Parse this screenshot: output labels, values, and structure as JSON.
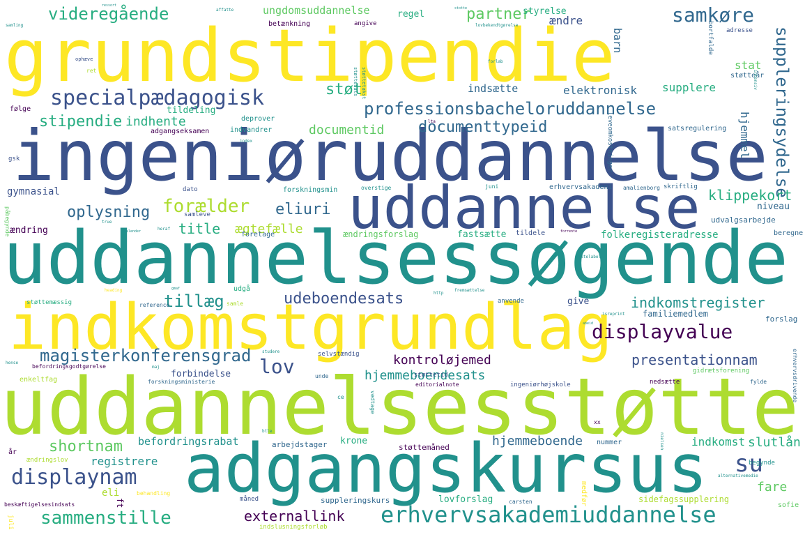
{
  "palette": {
    "purple": "#440154",
    "indigo": "#3b528b",
    "blue": "#31688e",
    "teal": "#21918c",
    "seagreen": "#27ad81",
    "green": "#5ec962",
    "lime": "#addc30",
    "yellow": "#fde725",
    "background": "#ffffff"
  },
  "words": [
    {
      "text": "grundstipendie",
      "weight": 100,
      "color": "#fde725",
      "orientation": "horizontal"
    },
    {
      "text": "ingeniøruddannelse",
      "weight": 92,
      "color": "#3b528b",
      "orientation": "horizontal"
    },
    {
      "text": "uddannelsessøgende",
      "weight": 90,
      "color": "#21918c",
      "orientation": "horizontal"
    },
    {
      "text": "uddannelsesstøtte",
      "weight": 95,
      "color": "#addc30",
      "orientation": "horizontal"
    },
    {
      "text": "indkomstgrundlag",
      "weight": 70,
      "color": "#fde725",
      "orientation": "horizontal"
    },
    {
      "text": "uddannelse",
      "weight": 70,
      "color": "#3b528b",
      "orientation": "horizontal"
    },
    {
      "text": "adgangskursus",
      "weight": 72,
      "color": "#21918c",
      "orientation": "horizontal"
    },
    {
      "text": "specialpædagogisk",
      "weight": 30,
      "color": "#3b528b",
      "orientation": "horizontal"
    },
    {
      "text": "professionsbacheloruddannelse",
      "weight": 28,
      "color": "#31688e",
      "orientation": "horizontal"
    },
    {
      "text": "erhvervsakademiuddannelse",
      "weight": 30,
      "color": "#21918c",
      "orientation": "horizontal"
    },
    {
      "text": "sammenstille",
      "weight": 26,
      "color": "#27ad81",
      "orientation": "horizontal"
    },
    {
      "text": "displaynam",
      "weight": 27,
      "color": "#3b528b",
      "orientation": "horizontal"
    },
    {
      "text": "displayvalue",
      "weight": 24,
      "color": "#440154",
      "orientation": "horizontal"
    },
    {
      "text": "magisterkonferensgrad",
      "weight": 22,
      "color": "#31688e",
      "orientation": "horizontal"
    },
    {
      "text": "videregående",
      "weight": 22,
      "color": "#27ad81",
      "orientation": "horizontal"
    },
    {
      "text": "samkøre",
      "weight": 22,
      "color": "#31688e",
      "orientation": "horizontal"
    },
    {
      "text": "suppleringsydelse",
      "weight": 22,
      "color": "#31688e",
      "orientation": "vertical"
    },
    {
      "text": "partner",
      "weight": 20,
      "color": "#5ec962",
      "orientation": "horizontal"
    },
    {
      "text": "støt",
      "weight": 22,
      "color": "#27ad81",
      "orientation": "horizontal"
    },
    {
      "text": "stipendie",
      "weight": 20,
      "color": "#27ad81",
      "orientation": "horizontal"
    },
    {
      "text": "forælder",
      "weight": 22,
      "color": "#addc30",
      "orientation": "horizontal"
    },
    {
      "text": "oplysning",
      "weight": 20,
      "color": "#31688e",
      "orientation": "horizontal"
    },
    {
      "text": "eliuri",
      "weight": 20,
      "color": "#31688e",
      "orientation": "horizontal"
    },
    {
      "text": "documenttypeid",
      "weight": 20,
      "color": "#31688e",
      "orientation": "horizontal"
    },
    {
      "text": "documentid",
      "weight": 18,
      "color": "#5ec962",
      "orientation": "horizontal"
    },
    {
      "text": "ungdomsuddannelse",
      "weight": 15,
      "color": "#5ec962",
      "orientation": "horizontal"
    },
    {
      "text": "tillæg",
      "weight": 20,
      "color": "#21918c",
      "orientation": "horizontal"
    },
    {
      "text": "udeboendesats",
      "weight": 20,
      "color": "#3b528b",
      "orientation": "horizontal"
    },
    {
      "text": "indkomstregister",
      "weight": 20,
      "color": "#21918c",
      "orientation": "horizontal"
    },
    {
      "text": "lov",
      "weight": 25,
      "color": "#3b528b",
      "orientation": "horizontal"
    },
    {
      "text": "kontroløjemed",
      "weight": 18,
      "color": "#440154",
      "orientation": "horizontal"
    },
    {
      "text": "hjemmeboendesats",
      "weight": 18,
      "color": "#21918c",
      "orientation": "horizontal"
    },
    {
      "text": "presentationnam",
      "weight": 18,
      "color": "#3b528b",
      "orientation": "horizontal"
    },
    {
      "text": "shortnam",
      "weight": 20,
      "color": "#5ec962",
      "orientation": "horizontal"
    },
    {
      "text": "su",
      "weight": 30,
      "color": "#3b528b",
      "orientation": "horizontal"
    },
    {
      "text": "externallink",
      "weight": 18,
      "color": "#440154",
      "orientation": "horizontal"
    },
    {
      "text": "fare",
      "weight": 16,
      "color": "#5ec962",
      "orientation": "horizontal"
    },
    {
      "text": "klippekort",
      "weight": 16,
      "color": "#27ad81",
      "orientation": "horizontal"
    },
    {
      "text": "title",
      "weight": 18,
      "color": "#27ad81",
      "orientation": "horizontal"
    },
    {
      "text": "ægtefælle",
      "weight": 16,
      "color": "#addc30",
      "orientation": "horizontal"
    },
    {
      "text": "hjemmeboende",
      "weight": 16,
      "color": "#31688e",
      "orientation": "horizontal"
    },
    {
      "text": "slutlån",
      "weight": 16,
      "color": "#27ad81",
      "orientation": "horizontal"
    },
    {
      "text": "indkomst",
      "weight": 14,
      "color": "#27ad81",
      "orientation": "horizontal"
    },
    {
      "text": "registrere",
      "weight": 14,
      "color": "#21918c",
      "orientation": "horizontal"
    },
    {
      "text": "befordringsrabat",
      "weight": 14,
      "color": "#21918c",
      "orientation": "horizontal"
    },
    {
      "text": "indhente",
      "weight": 16,
      "color": "#27ad81",
      "orientation": "horizontal"
    },
    {
      "text": "elektronisk",
      "weight": 14,
      "color": "#31688e",
      "orientation": "horizontal"
    },
    {
      "text": "supplere",
      "weight": 14,
      "color": "#27ad81",
      "orientation": "horizontal"
    },
    {
      "text": "indsætte",
      "weight": 14,
      "color": "#31688e",
      "orientation": "horizontal"
    },
    {
      "text": "hjemmel",
      "weight": 14,
      "color": "#31688e",
      "orientation": "vertical"
    },
    {
      "text": "barn",
      "weight": 14,
      "color": "#31688e",
      "orientation": "vertical"
    },
    {
      "text": "stat",
      "weight": 14,
      "color": "#5ec962",
      "orientation": "horizontal"
    },
    {
      "text": "styrelse",
      "weight": 12,
      "color": "#27ad81",
      "orientation": "horizontal"
    },
    {
      "text": "ændre",
      "weight": 14,
      "color": "#3b528b",
      "orientation": "horizontal"
    },
    {
      "text": "regel",
      "weight": 12,
      "color": "#27ad81",
      "orientation": "horizontal"
    },
    {
      "text": "tildeling",
      "weight": 12,
      "color": "#27ad81",
      "orientation": "horizontal"
    },
    {
      "text": "gymnasial",
      "weight": 13,
      "color": "#3b528b",
      "orientation": "horizontal"
    },
    {
      "text": "ændring",
      "weight": 12,
      "color": "#440154",
      "orientation": "horizontal"
    },
    {
      "text": "ændringsforslag",
      "weight": 11,
      "color": "#5ec962",
      "orientation": "horizontal"
    },
    {
      "text": "fastsætte",
      "weight": 13,
      "color": "#27ad81",
      "orientation": "horizontal"
    },
    {
      "text": "forbindelse",
      "weight": 13,
      "color": "#3b528b",
      "orientation": "horizontal"
    },
    {
      "text": "folkeregisteradresse",
      "weight": 13,
      "color": "#27ad81",
      "orientation": "horizontal"
    },
    {
      "text": "familiemedlem",
      "weight": 12,
      "color": "#31688e",
      "orientation": "horizontal"
    },
    {
      "text": "give",
      "weight": 12,
      "color": "#3b528b",
      "orientation": "horizontal"
    },
    {
      "text": "forslag",
      "weight": 11,
      "color": "#31688e",
      "orientation": "horizontal"
    },
    {
      "text": "lovforslag",
      "weight": 12,
      "color": "#27ad81",
      "orientation": "horizontal"
    },
    {
      "text": "suppleringskurs",
      "weight": 11,
      "color": "#31688e",
      "orientation": "horizontal"
    },
    {
      "text": "sidefagssupplering",
      "weight": 11,
      "color": "#addc30",
      "orientation": "horizontal"
    },
    {
      "text": "støttemåned",
      "weight": 11,
      "color": "#440154",
      "orientation": "horizontal"
    },
    {
      "text": "krone",
      "weight": 12,
      "color": "#27ad81",
      "orientation": "horizontal"
    },
    {
      "text": "arbejdstager",
      "weight": 11,
      "color": "#31688e",
      "orientation": "horizontal"
    },
    {
      "text": "nummer",
      "weight": 10,
      "color": "#31688e",
      "orientation": "horizontal"
    },
    {
      "text": "beregne",
      "weight": 10,
      "color": "#31688e",
      "orientation": "horizontal"
    },
    {
      "text": "udvalgsarbejde",
      "weight": 11,
      "color": "#31688e",
      "orientation": "horizontal"
    },
    {
      "text": "niveau",
      "weight": 12,
      "color": "#31688e",
      "orientation": "horizontal"
    },
    {
      "text": "erhvervsakademi",
      "weight": 10,
      "color": "#31688e",
      "orientation": "horizontal"
    },
    {
      "text": "forskningsmin",
      "weight": 10,
      "color": "#21918c",
      "orientation": "horizontal"
    },
    {
      "text": "satsregulering",
      "weight": 10,
      "color": "#31688e",
      "orientation": "horizontal"
    },
    {
      "text": "adgangseksamen",
      "weight": 10,
      "color": "#440154",
      "orientation": "horizontal"
    },
    {
      "text": "indvandrer",
      "weight": 10,
      "color": "#21918c",
      "orientation": "horizontal"
    },
    {
      "text": "deprover",
      "weight": 10,
      "color": "#21918c",
      "orientation": "horizontal"
    },
    {
      "text": "følge",
      "weight": 10,
      "color": "#440154",
      "orientation": "horizontal"
    },
    {
      "text": "betænkning",
      "weight": 10,
      "color": "#440154",
      "orientation": "horizontal"
    },
    {
      "text": "angive",
      "weight": 9,
      "color": "#440154",
      "orientation": "horizontal"
    },
    {
      "text": "adresse",
      "weight": 9,
      "color": "#3b528b",
      "orientation": "horizontal"
    },
    {
      "text": "støtteår",
      "weight": 10,
      "color": "#31688e",
      "orientation": "horizontal"
    },
    {
      "text": "skriftlig",
      "weight": 9,
      "color": "#31688e",
      "orientation": "horizontal"
    },
    {
      "text": "amalienborg",
      "weight": 8,
      "color": "#31688e",
      "orientation": "horizontal"
    },
    {
      "text": "leveomkostninger",
      "weight": 9,
      "color": "#31688e",
      "orientation": "vertical"
    },
    {
      "text": "bortfalde",
      "weight": 9,
      "color": "#31688e",
      "orientation": "vertical"
    },
    {
      "text": "juni",
      "weight": 8,
      "color": "#21918c",
      "orientation": "horizontal"
    },
    {
      "text": "overstige",
      "weight": 8,
      "color": "#21918c",
      "orientation": "horizontal"
    },
    {
      "text": "dato",
      "weight": 9,
      "color": "#3b528b",
      "orientation": "horizontal"
    },
    {
      "text": "samleve",
      "weight": 9,
      "color": "#3b528b",
      "orientation": "horizontal"
    },
    {
      "text": "foretage",
      "weight": 10,
      "color": "#31688e",
      "orientation": "horizontal"
    },
    {
      "text": "tildele",
      "weight": 10,
      "color": "#3b528b",
      "orientation": "horizontal"
    },
    {
      "text": "udgå",
      "weight": 10,
      "color": "#27ad81",
      "orientation": "horizontal"
    },
    {
      "text": "støttemæssig",
      "weight": 9,
      "color": "#27ad81",
      "orientation": "horizontal"
    },
    {
      "text": "reference",
      "weight": 8,
      "color": "#31688e",
      "orientation": "horizontal"
    },
    {
      "text": "samle",
      "weight": 8,
      "color": "#addc30",
      "orientation": "horizontal"
    },
    {
      "text": "anvende",
      "weight": 9,
      "color": "#31688e",
      "orientation": "horizontal"
    },
    {
      "text": "ingeniørhøjskole",
      "weight": 9,
      "color": "#3b528b",
      "orientation": "horizontal"
    },
    {
      "text": "gidrætsforening",
      "weight": 9,
      "color": "#5ec962",
      "orientation": "horizontal"
    },
    {
      "text": "nedsætte",
      "weight": 9,
      "color": "#440154",
      "orientation": "horizontal"
    },
    {
      "text": "selvstændig",
      "weight": 9,
      "color": "#3b528b",
      "orientation": "horizontal"
    },
    {
      "text": "støttetid",
      "weight": 9,
      "color": "#3b528b",
      "orientation": "horizontal"
    },
    {
      "text": "enkeltfag",
      "weight": 10,
      "color": "#addc30",
      "orientation": "horizontal"
    },
    {
      "text": "befordringsgodtgørelse",
      "weight": 8,
      "color": "#440154",
      "orientation": "horizontal"
    },
    {
      "text": "forskningsministerie",
      "weight": 8,
      "color": "#31688e",
      "orientation": "horizontal"
    },
    {
      "text": "unde",
      "weight": 8,
      "color": "#31688e",
      "orientation": "horizontal"
    },
    {
      "text": "editorialnote",
      "weight": 8,
      "color": "#440154",
      "orientation": "horizontal"
    },
    {
      "text": "fylde",
      "weight": 8,
      "color": "#31688e",
      "orientation": "horizontal"
    },
    {
      "text": "erhvervsdrivende",
      "weight": 8,
      "color": "#31688e",
      "orientation": "vertical"
    },
    {
      "text": "ændringslov",
      "weight": 9,
      "color": "#addc30",
      "orientation": "horizontal"
    },
    {
      "text": "år",
      "weight": 10,
      "color": "#440154",
      "orientation": "horizontal"
    },
    {
      "text": "eli",
      "weight": 12,
      "color": "#addc30",
      "orientation": "horizontal"
    },
    {
      "text": "behandling",
      "weight": 8,
      "color": "#fde725",
      "orientation": "horizontal"
    },
    {
      "text": "måned",
      "weight": 9,
      "color": "#3b528b",
      "orientation": "horizontal"
    },
    {
      "text": "medfør",
      "weight": 9,
      "color": "#fde725",
      "orientation": "vertical"
    },
    {
      "text": "carsten",
      "weight": 8,
      "color": "#31688e",
      "orientation": "horizontal"
    },
    {
      "text": "sofie",
      "weight": 9,
      "color": "#5ec962",
      "orientation": "horizontal"
    },
    {
      "text": "beskæftigelsesindsats",
      "weight": 8,
      "color": "#440154",
      "orientation": "horizontal"
    },
    {
      "text": "indslusningsforløb",
      "weight": 9,
      "color": "#addc30",
      "orientation": "horizontal"
    },
    {
      "text": "juli",
      "weight": 8,
      "color": "#fde725",
      "orientation": "vertical"
    },
    {
      "text": "begynde",
      "weight": 9,
      "color": "#21918c",
      "orientation": "horizontal"
    },
    {
      "text": "vedtage",
      "weight": 8,
      "color": "#21918c",
      "orientation": "vertical"
    },
    {
      "text": "ce",
      "weight": 8,
      "color": "#21918c",
      "orientation": "horizontal"
    },
    {
      "text": "xx",
      "weight": 8,
      "color": "#440154",
      "orientation": "horizontal"
    },
    {
      "text": "ft",
      "weight": 10,
      "color": "#440154",
      "orientation": "vertical"
    },
    {
      "text": "gsk",
      "weight": 8,
      "color": "#3b528b",
      "orientation": "horizontal"
    },
    {
      "text": "påbegynde",
      "weight": 8,
      "color": "#5ec962",
      "orientation": "vertical"
    },
    {
      "text": "ophæve",
      "weight": 7,
      "color": "#3b528b",
      "orientation": "horizontal"
    },
    {
      "text": "ret",
      "weight": 8,
      "color": "#addc30",
      "orientation": "horizontal"
    },
    {
      "text": "samling",
      "weight": 6,
      "color": "#21918c",
      "orientation": "horizontal"
    },
    {
      "text": "affatte",
      "weight": 6,
      "color": "#21918c",
      "orientation": "horizontal"
    },
    {
      "text": "støttesats",
      "weight": 7,
      "color": "#21918c",
      "orientation": "vertical"
    },
    {
      "text": "støttetakst",
      "weight": 7,
      "color": "#21918c",
      "orientation": "vertical"
    },
    {
      "text": "lovbekendtgørelse",
      "weight": 6,
      "color": "#21918c",
      "orientation": "horizontal"
    },
    {
      "text": "forlab",
      "weight": 6,
      "color": "#21918c",
      "orientation": "horizontal"
    },
    {
      "text": "lta",
      "weight": 6,
      "color": "#440154",
      "orientation": "horizontal"
    },
    {
      "text": "intensiv",
      "weight": 6,
      "color": "#21918c",
      "orientation": "vertical"
    },
    {
      "text": "statelabel",
      "weight": 6,
      "color": "#21918c",
      "orientation": "horizontal"
    },
    {
      "text": "http",
      "weight": 6,
      "color": "#21918c",
      "orientation": "horizontal"
    },
    {
      "text": "true",
      "weight": 6,
      "color": "#21918c",
      "orientation": "horizontal"
    },
    {
      "text": "heraf",
      "weight": 6,
      "color": "#21918c",
      "orientation": "horizontal"
    },
    {
      "text": "heading",
      "weight": 6,
      "color": "#fde725",
      "orientation": "horizontal"
    },
    {
      "text": "studere",
      "weight": 6,
      "color": "#21918c",
      "orientation": "horizontal"
    },
    {
      "text": "maj",
      "weight": 6,
      "color": "#21918c",
      "orientation": "horizontal"
    },
    {
      "text": "hense",
      "weight": 6,
      "color": "#21918c",
      "orientation": "horizontal"
    },
    {
      "text": "btle",
      "weight": 6,
      "color": "#21918c",
      "orientation": "horizontal"
    },
    {
      "text": "nielsen",
      "weight": 6,
      "color": "#21918c",
      "orientation": "vertical"
    },
    {
      "text": "alternativemedie",
      "weight": 6,
      "color": "#21918c",
      "orientation": "horizontal"
    },
    {
      "text": "isreprint",
      "weight": 6,
      "color": "#21918c",
      "orientation": "horizontal"
    },
    {
      "text": "fremsættelse",
      "weight": 6,
      "color": "#21918c",
      "orientation": "horizontal"
    },
    {
      "text": "index",
      "weight": 6,
      "color": "#21918c",
      "orientation": "horizontal"
    },
    {
      "text": "ressort",
      "weight": 5,
      "color": "#21918c",
      "orientation": "horizontal"
    },
    {
      "text": "stotte",
      "weight": 5,
      "color": "#21918c",
      "orientation": "horizontal"
    },
    {
      "text": "gmaf",
      "weight": 5,
      "color": "#21918c",
      "orientation": "horizontal"
    },
    {
      "text": "abeid",
      "weight": 5,
      "color": "#21918c",
      "orientation": "horizontal"
    },
    {
      "text": "forrente",
      "weight": 5,
      "color": "#440154",
      "orientation": "horizontal"
    },
    {
      "text": "balender",
      "weight": 5,
      "color": "#21918c",
      "orientation": "horizontal"
    }
  ]
}
